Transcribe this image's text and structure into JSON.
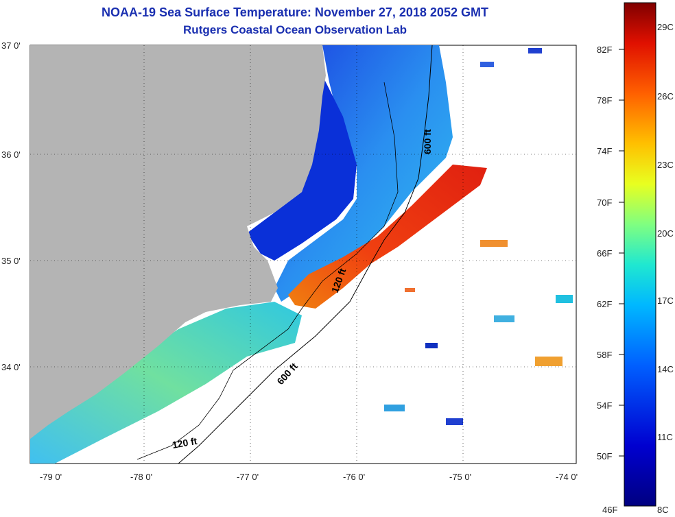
{
  "title": {
    "line1": "NOAA-19 Sea Surface Temperature:  November 27, 2018 2052 GMT",
    "line2": "Rutgers Coastal Ocean Observation Lab"
  },
  "map": {
    "latitude_labels": [
      "37 0'",
      "36 0'",
      "35 0'",
      "34 0'"
    ],
    "longitude_labels": [
      "-79 0'",
      "-78 0'",
      "-77 0'",
      "-76 0'",
      "-75 0'",
      "-74 0'"
    ],
    "contour_labels": {
      "c600_north": "600 ft",
      "c120_mid": "120 ft",
      "c600_south": "600 ft",
      "c120_south": "120 ft"
    },
    "colors": {
      "land": "#b4b4b4",
      "ocean_missing": "#ffffff",
      "cold": "#0a2ad8",
      "warm": "#e82a10"
    }
  },
  "colorbar": {
    "fahrenheit_labels": [
      "82F",
      "78F",
      "74F",
      "70F",
      "66F",
      "62F",
      "58F",
      "54F",
      "50F",
      "46F"
    ],
    "celsius_labels": [
      "29C",
      "26C",
      "23C",
      "20C",
      "17C",
      "14C",
      "11C",
      "8C"
    ]
  }
}
